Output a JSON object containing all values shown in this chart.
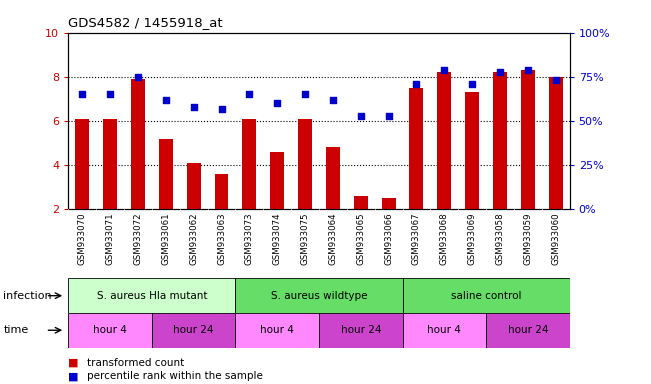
{
  "title": "GDS4582 / 1455918_at",
  "samples": [
    "GSM933070",
    "GSM933071",
    "GSM933072",
    "GSM933061",
    "GSM933062",
    "GSM933063",
    "GSM933073",
    "GSM933074",
    "GSM933075",
    "GSM933064",
    "GSM933065",
    "GSM933066",
    "GSM933067",
    "GSM933068",
    "GSM933069",
    "GSM933058",
    "GSM933059",
    "GSM933060"
  ],
  "bar_values": [
    6.1,
    6.1,
    7.9,
    5.2,
    4.1,
    3.6,
    6.1,
    4.6,
    6.1,
    4.8,
    2.6,
    2.5,
    7.5,
    8.2,
    7.3,
    8.2,
    8.3,
    8.0
  ],
  "percentile_values": [
    65,
    65,
    75,
    62,
    58,
    57,
    65,
    60,
    65,
    62,
    53,
    53,
    71,
    79,
    71,
    78,
    79,
    73
  ],
  "bar_color": "#cc0000",
  "dot_color": "#0000cc",
  "ylim_left": [
    2,
    10
  ],
  "ylim_right": [
    0,
    100
  ],
  "yticks_left": [
    2,
    4,
    6,
    8,
    10
  ],
  "yticks_right": [
    0,
    25,
    50,
    75,
    100
  ],
  "ytick_labels_right": [
    "0%",
    "25%",
    "50%",
    "75%",
    "100%"
  ],
  "infection_groups": [
    {
      "label": "S. aureus Hla mutant",
      "start": 0,
      "end": 6,
      "color": "#ccffcc"
    },
    {
      "label": "S. aureus wildtype",
      "start": 6,
      "end": 12,
      "color": "#66dd66"
    },
    {
      "label": "saline control",
      "start": 12,
      "end": 18,
      "color": "#66dd66"
    }
  ],
  "infection_colors": [
    "#ccffcc",
    "#66dd66",
    "#66dd66"
  ],
  "time_groups": [
    {
      "label": "hour 4",
      "start": 0,
      "end": 3
    },
    {
      "label": "hour 24",
      "start": 3,
      "end": 6
    },
    {
      "label": "hour 4",
      "start": 6,
      "end": 9
    },
    {
      "label": "hour 24",
      "start": 9,
      "end": 12
    },
    {
      "label": "hour 4",
      "start": 12,
      "end": 15
    },
    {
      "label": "hour 24",
      "start": 15,
      "end": 18
    }
  ],
  "time_colors": [
    "#ff88ff",
    "#cc44cc",
    "#ff88ff",
    "#cc44cc",
    "#ff88ff",
    "#cc44cc"
  ],
  "legend_bar_label": "transformed count",
  "legend_dot_label": "percentile rank within the sample",
  "infection_label": "infection",
  "time_label": "time",
  "sample_bg_color": "#cccccc",
  "bar_bottom": 2.0,
  "tick_color_left": "#cc0000",
  "tick_color_right": "#0000cc"
}
